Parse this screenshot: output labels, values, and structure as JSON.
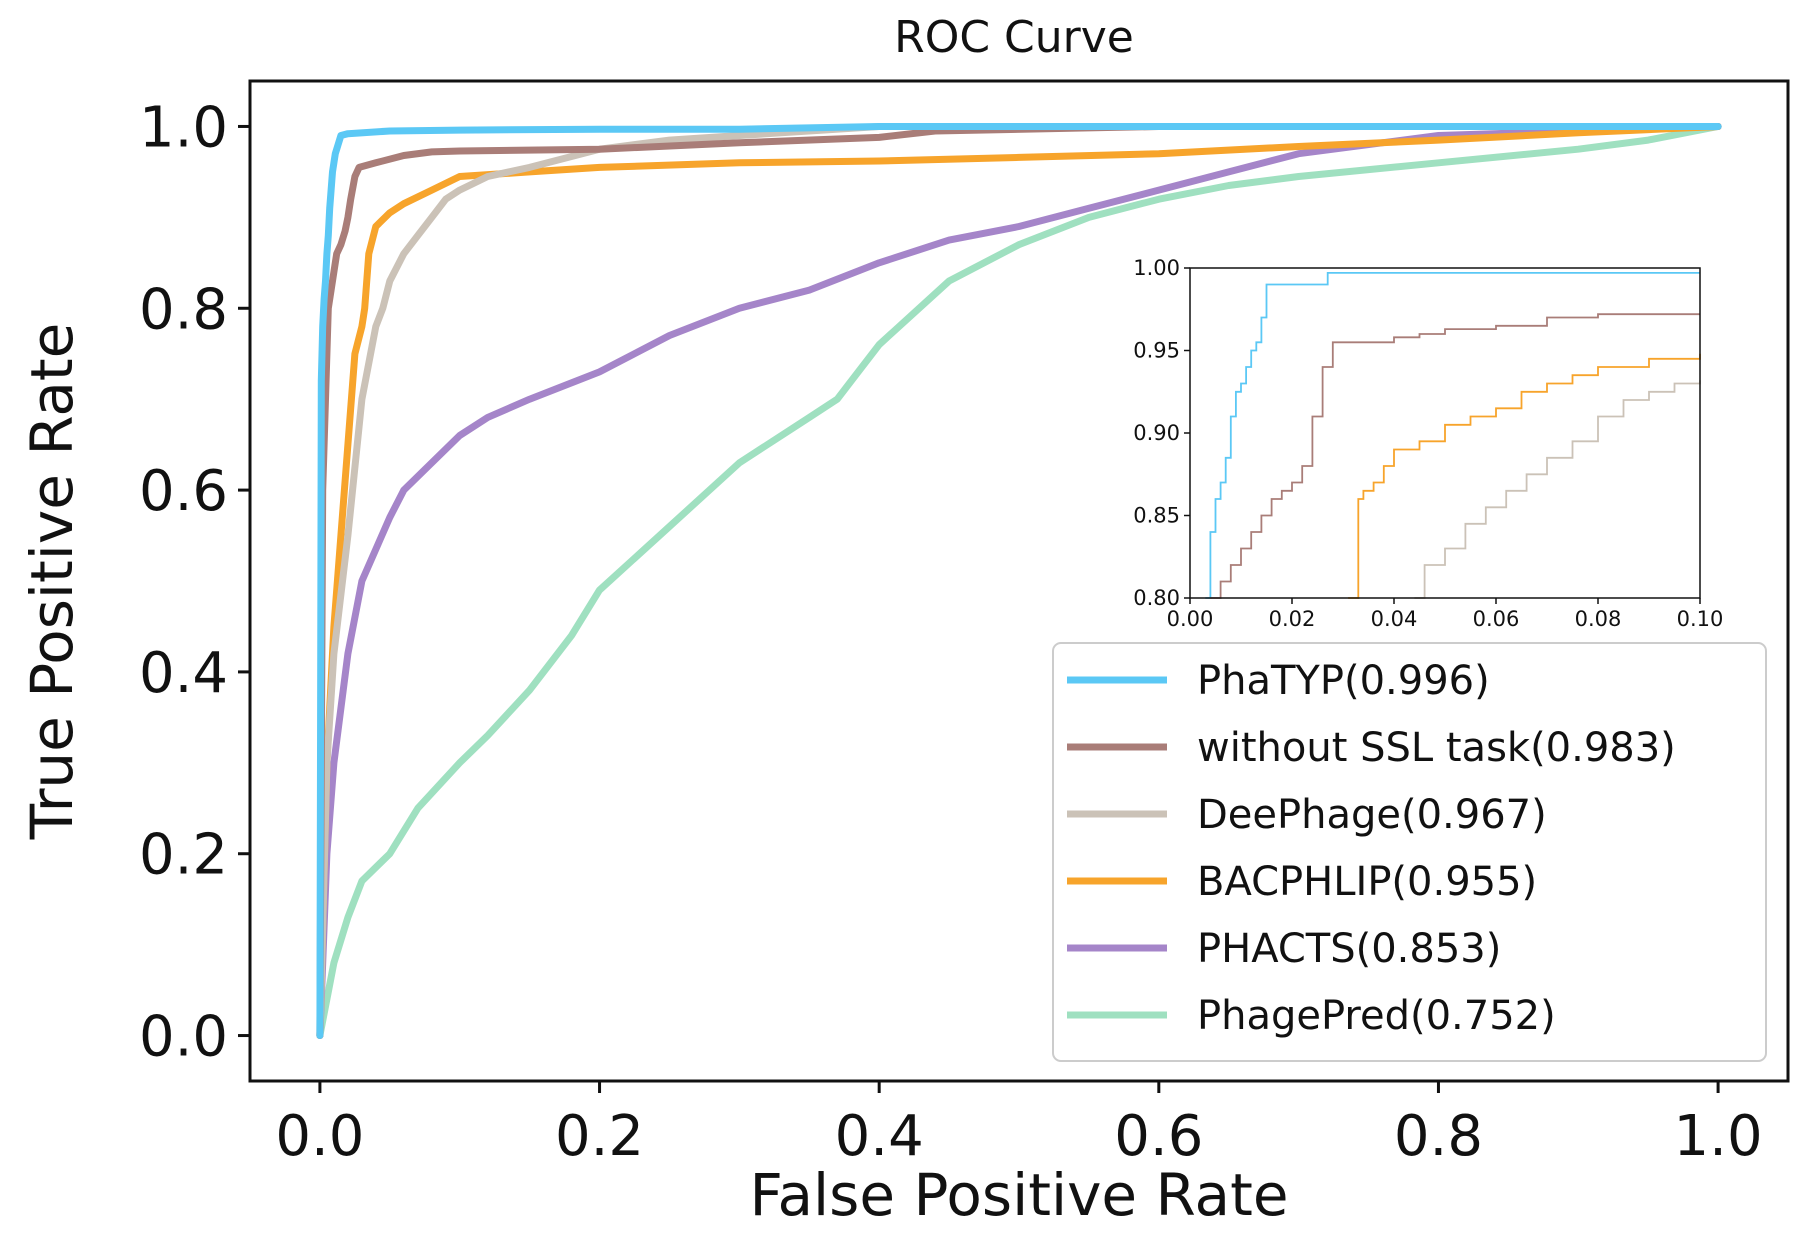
{
  "chart_data": {
    "type": "line",
    "title": "ROC Curve",
    "xlabel": "False Positive Rate",
    "ylabel": "True Positive Rate",
    "xlim": [
      -0.05,
      1.05
    ],
    "ylim": [
      -0.05,
      1.05
    ],
    "xticks": [
      0.0,
      0.2,
      0.4,
      0.6,
      0.8,
      1.0
    ],
    "yticks": [
      0.0,
      0.2,
      0.4,
      0.6,
      0.8,
      1.0
    ],
    "xtick_labels": [
      "0.0",
      "0.2",
      "0.4",
      "0.6",
      "0.8",
      "1.0"
    ],
    "ytick_labels": [
      "0.0",
      "0.2",
      "0.4",
      "0.6",
      "0.8",
      "1.0"
    ],
    "grid": false,
    "legend_position": "lower-right",
    "series": [
      {
        "name": "PhaTYP(0.996)",
        "color": "#5bc8f5",
        "x": [
          0,
          0.001,
          0.002,
          0.003,
          0.004,
          0.005,
          0.006,
          0.007,
          0.008,
          0.009,
          0.01,
          0.011,
          0.012,
          0.013,
          0.014,
          0.015,
          0.02,
          0.05,
          0.1,
          0.2,
          0.3,
          0.4,
          0.6,
          0.8,
          1.0
        ],
        "y": [
          0,
          0.72,
          0.78,
          0.81,
          0.83,
          0.86,
          0.88,
          0.91,
          0.93,
          0.95,
          0.96,
          0.97,
          0.975,
          0.98,
          0.985,
          0.99,
          0.992,
          0.995,
          0.996,
          0.997,
          0.997,
          1.0,
          1.0,
          1.0,
          1.0
        ]
      },
      {
        "name": "without SSL task(0.983)",
        "color": "#a97d78",
        "x": [
          0,
          0.002,
          0.004,
          0.006,
          0.008,
          0.01,
          0.012,
          0.015,
          0.018,
          0.02,
          0.022,
          0.025,
          0.028,
          0.04,
          0.06,
          0.08,
          0.1,
          0.2,
          0.3,
          0.4,
          0.44,
          0.6,
          0.8,
          1.0
        ],
        "y": [
          0,
          0.6,
          0.7,
          0.8,
          0.82,
          0.84,
          0.86,
          0.87,
          0.885,
          0.9,
          0.92,
          0.945,
          0.955,
          0.96,
          0.968,
          0.972,
          0.973,
          0.975,
          0.982,
          0.988,
          0.995,
          1.0,
          1.0,
          1.0
        ]
      },
      {
        "name": "DeePhage(0.967)",
        "color": "#cbc2b7",
        "x": [
          0,
          0.005,
          0.01,
          0.02,
          0.03,
          0.04,
          0.045,
          0.05,
          0.06,
          0.07,
          0.08,
          0.09,
          0.1,
          0.12,
          0.15,
          0.2,
          0.25,
          0.3,
          0.4,
          0.5,
          0.6,
          0.8,
          1.0
        ],
        "y": [
          0,
          0.3,
          0.42,
          0.55,
          0.7,
          0.78,
          0.8,
          0.83,
          0.86,
          0.88,
          0.9,
          0.92,
          0.93,
          0.945,
          0.955,
          0.975,
          0.985,
          0.99,
          1.0,
          1.0,
          1.0,
          1.0,
          1.0
        ]
      },
      {
        "name": "BACPHLIP(0.955)",
        "color": "#f7a42b",
        "x": [
          0,
          0.005,
          0.01,
          0.015,
          0.02,
          0.025,
          0.03,
          0.032,
          0.035,
          0.04,
          0.05,
          0.06,
          0.08,
          0.1,
          0.15,
          0.2,
          0.3,
          0.4,
          0.5,
          0.6,
          0.7,
          0.8,
          0.9,
          1.0
        ],
        "y": [
          0,
          0.3,
          0.45,
          0.55,
          0.65,
          0.75,
          0.78,
          0.8,
          0.86,
          0.89,
          0.905,
          0.915,
          0.93,
          0.945,
          0.95,
          0.955,
          0.96,
          0.962,
          0.966,
          0.97,
          0.978,
          0.985,
          0.993,
          1.0
        ]
      },
      {
        "name": "PHACTS(0.853)",
        "color": "#a585c9",
        "x": [
          0,
          0.005,
          0.01,
          0.02,
          0.03,
          0.05,
          0.06,
          0.08,
          0.1,
          0.12,
          0.15,
          0.2,
          0.25,
          0.3,
          0.35,
          0.4,
          0.45,
          0.5,
          0.55,
          0.6,
          0.65,
          0.7,
          0.8,
          0.9,
          1.0
        ],
        "y": [
          0,
          0.2,
          0.3,
          0.42,
          0.5,
          0.57,
          0.6,
          0.63,
          0.66,
          0.68,
          0.7,
          0.73,
          0.77,
          0.8,
          0.82,
          0.85,
          0.875,
          0.89,
          0.91,
          0.93,
          0.95,
          0.97,
          0.99,
          0.995,
          1.0
        ]
      },
      {
        "name": "PhagePred(0.752)",
        "color": "#9fe0c0",
        "x": [
          0,
          0.01,
          0.02,
          0.03,
          0.05,
          0.07,
          0.1,
          0.12,
          0.15,
          0.18,
          0.2,
          0.25,
          0.3,
          0.35,
          0.37,
          0.4,
          0.45,
          0.5,
          0.55,
          0.6,
          0.65,
          0.7,
          0.8,
          0.9,
          0.95,
          1.0
        ],
        "y": [
          0,
          0.08,
          0.13,
          0.17,
          0.2,
          0.25,
          0.3,
          0.33,
          0.38,
          0.44,
          0.49,
          0.56,
          0.63,
          0.68,
          0.7,
          0.76,
          0.83,
          0.87,
          0.9,
          0.92,
          0.935,
          0.945,
          0.96,
          0.975,
          0.985,
          1.0
        ]
      }
    ],
    "inset": {
      "xlim": [
        0.0,
        0.1
      ],
      "ylim": [
        0.8,
        1.0
      ],
      "xticks": [
        0.0,
        0.02,
        0.04,
        0.06,
        0.08,
        0.1
      ],
      "yticks": [
        0.8,
        0.85,
        0.9,
        0.95,
        1.0
      ],
      "xtick_labels": [
        "0.00",
        "0.02",
        "0.04",
        "0.06",
        "0.08",
        "0.10"
      ],
      "ytick_labels": [
        "0.80",
        "0.85",
        "0.90",
        "0.95",
        "1.00"
      ],
      "series": [
        {
          "name": "PhaTYP",
          "color": "#5bc8f5",
          "x": [
            0.003,
            0.004,
            0.005,
            0.006,
            0.007,
            0.008,
            0.009,
            0.01,
            0.011,
            0.012,
            0.013,
            0.014,
            0.015,
            0.018,
            0.025,
            0.027,
            0.05,
            0.1
          ],
          "y": [
            0.8,
            0.84,
            0.86,
            0.87,
            0.885,
            0.91,
            0.925,
            0.93,
            0.94,
            0.95,
            0.955,
            0.97,
            0.99,
            0.99,
            0.99,
            0.997,
            0.997,
            0.997
          ]
        },
        {
          "name": "without SSL task",
          "color": "#a97d78",
          "x": [
            0.004,
            0.006,
            0.008,
            0.01,
            0.012,
            0.014,
            0.016,
            0.018,
            0.02,
            0.022,
            0.024,
            0.026,
            0.028,
            0.035,
            0.04,
            0.045,
            0.05,
            0.06,
            0.07,
            0.08,
            0.1
          ],
          "y": [
            0.8,
            0.81,
            0.82,
            0.83,
            0.84,
            0.85,
            0.86,
            0.865,
            0.87,
            0.88,
            0.91,
            0.94,
            0.955,
            0.955,
            0.958,
            0.96,
            0.963,
            0.965,
            0.97,
            0.972,
            0.972
          ]
        },
        {
          "name": "BACPHLIP",
          "color": "#f7a42b",
          "x": [
            0.031,
            0.033,
            0.034,
            0.036,
            0.038,
            0.04,
            0.045,
            0.05,
            0.055,
            0.06,
            0.065,
            0.07,
            0.075,
            0.08,
            0.09,
            0.1
          ],
          "y": [
            0.8,
            0.86,
            0.865,
            0.87,
            0.88,
            0.89,
            0.895,
            0.905,
            0.91,
            0.915,
            0.925,
            0.93,
            0.935,
            0.94,
            0.945,
            0.948
          ]
        },
        {
          "name": "DeePhage",
          "color": "#cbc2b7",
          "x": [
            0.044,
            0.046,
            0.05,
            0.054,
            0.058,
            0.062,
            0.066,
            0.07,
            0.075,
            0.08,
            0.085,
            0.09,
            0.095,
            0.1
          ],
          "y": [
            0.8,
            0.82,
            0.83,
            0.845,
            0.855,
            0.865,
            0.875,
            0.885,
            0.895,
            0.91,
            0.92,
            0.925,
            0.93,
            0.932
          ]
        }
      ]
    }
  }
}
